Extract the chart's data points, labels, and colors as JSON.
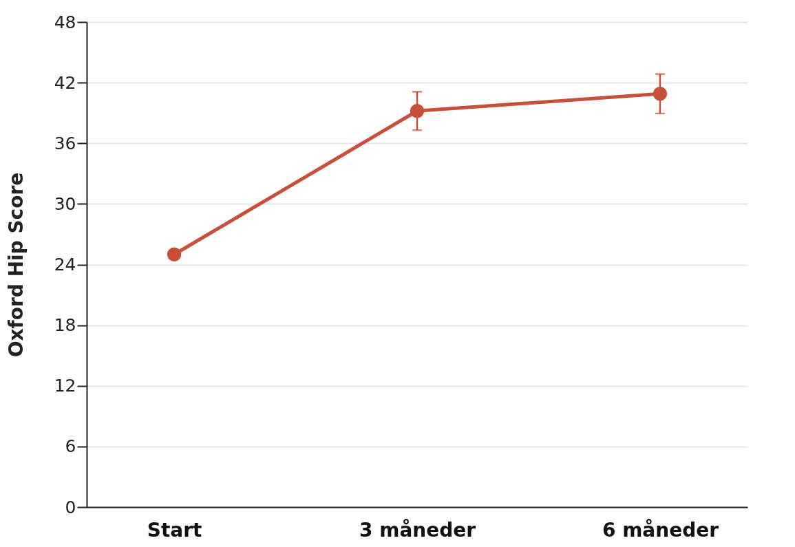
{
  "chart_data": {
    "type": "line",
    "ylabel": "Oxford Hip Score",
    "categories": [
      "Start",
      "3 måneder",
      "6 måneder"
    ],
    "series": [
      {
        "color": "#c8503a",
        "values": [
          25,
          39.2,
          40.9
        ],
        "errors": [
          null,
          1.9,
          1.95
        ]
      }
    ],
    "ylim": [
      0,
      48
    ],
    "yticks": [
      0,
      6,
      12,
      18,
      24,
      30,
      36,
      42,
      48
    ],
    "grid": "y",
    "marker": "circle",
    "line_style": "solid"
  }
}
